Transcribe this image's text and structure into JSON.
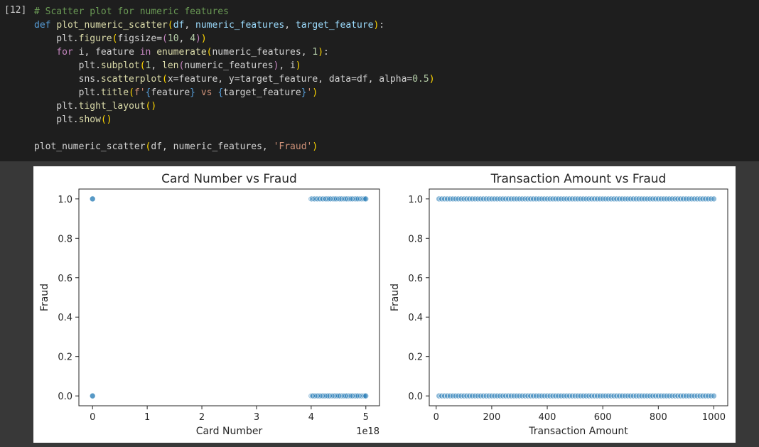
{
  "cell": {
    "execution_count": "[12]",
    "code_lines": [
      [
        {
          "t": "# Scatter plot for numeric features",
          "c": "cm"
        }
      ],
      [
        {
          "t": "def ",
          "c": "kw"
        },
        {
          "t": "plot_numeric_scatter",
          "c": "fn"
        },
        {
          "t": "(",
          "c": "pr"
        },
        {
          "t": "df",
          "c": "vr"
        },
        {
          "t": ", ",
          "c": "pl"
        },
        {
          "t": "numeric_features",
          "c": "vr"
        },
        {
          "t": ", ",
          "c": "pl"
        },
        {
          "t": "target_feature",
          "c": "vr"
        },
        {
          "t": ")",
          "c": "pr"
        },
        {
          "t": ":",
          "c": "pl"
        }
      ],
      [
        {
          "t": "    plt.",
          "c": "pl"
        },
        {
          "t": "figure",
          "c": "fn"
        },
        {
          "t": "(",
          "c": "pr"
        },
        {
          "t": "figsize=",
          "c": "pl"
        },
        {
          "t": "(",
          "c": "ctl"
        },
        {
          "t": "10",
          "c": "nm"
        },
        {
          "t": ", ",
          "c": "pl"
        },
        {
          "t": "4",
          "c": "nm"
        },
        {
          "t": ")",
          "c": "ctl"
        },
        {
          "t": ")",
          "c": "pr"
        }
      ],
      [
        {
          "t": "    ",
          "c": "pl"
        },
        {
          "t": "for ",
          "c": "ctl"
        },
        {
          "t": "i, feature ",
          "c": "pl"
        },
        {
          "t": "in ",
          "c": "ctl"
        },
        {
          "t": "enumerate",
          "c": "fn"
        },
        {
          "t": "(",
          "c": "pr"
        },
        {
          "t": "numeric_features, ",
          "c": "pl"
        },
        {
          "t": "1",
          "c": "nm"
        },
        {
          "t": ")",
          "c": "pr"
        },
        {
          "t": ":",
          "c": "pl"
        }
      ],
      [
        {
          "t": "        plt.",
          "c": "pl"
        },
        {
          "t": "subplot",
          "c": "fn"
        },
        {
          "t": "(",
          "c": "pr"
        },
        {
          "t": "1",
          "c": "nm"
        },
        {
          "t": ", ",
          "c": "pl"
        },
        {
          "t": "len",
          "c": "fn"
        },
        {
          "t": "(",
          "c": "ctl"
        },
        {
          "t": "numeric_features",
          "c": "pl"
        },
        {
          "t": ")",
          "c": "ctl"
        },
        {
          "t": ", i",
          "c": "pl"
        },
        {
          "t": ")",
          "c": "pr"
        }
      ],
      [
        {
          "t": "        sns.",
          "c": "pl"
        },
        {
          "t": "scatterplot",
          "c": "fn"
        },
        {
          "t": "(",
          "c": "pr"
        },
        {
          "t": "x=feature, y=target_feature, data=df, alpha=",
          "c": "pl"
        },
        {
          "t": "0.5",
          "c": "nm"
        },
        {
          "t": ")",
          "c": "pr"
        }
      ],
      [
        {
          "t": "        plt.",
          "c": "pl"
        },
        {
          "t": "title",
          "c": "fn"
        },
        {
          "t": "(",
          "c": "pr"
        },
        {
          "t": "f'",
          "c": "st"
        },
        {
          "t": "{",
          "c": "kw"
        },
        {
          "t": "feature",
          "c": "pl"
        },
        {
          "t": "}",
          "c": "kw"
        },
        {
          "t": " vs ",
          "c": "st"
        },
        {
          "t": "{",
          "c": "kw"
        },
        {
          "t": "target_feature",
          "c": "pl"
        },
        {
          "t": "}",
          "c": "kw"
        },
        {
          "t": "'",
          "c": "st"
        },
        {
          "t": ")",
          "c": "pr"
        }
      ],
      [
        {
          "t": "    plt.",
          "c": "pl"
        },
        {
          "t": "tight_layout",
          "c": "fn"
        },
        {
          "t": "()",
          "c": "pr"
        }
      ],
      [
        {
          "t": "    plt.",
          "c": "pl"
        },
        {
          "t": "show",
          "c": "fn"
        },
        {
          "t": "()",
          "c": "pr"
        }
      ],
      [
        {
          "t": "",
          "c": "pl"
        }
      ],
      [
        {
          "t": "plot_numeric_scatter",
          "c": "pl"
        },
        {
          "t": "(",
          "c": "pr"
        },
        {
          "t": "df, numeric_features, ",
          "c": "pl"
        },
        {
          "t": "'Fraud'",
          "c": "st"
        },
        {
          "t": ")",
          "c": "pr"
        }
      ]
    ]
  },
  "syntax_colors": {
    "comment": "#6a9955",
    "keyword": "#569cd6",
    "control": "#c586c0",
    "function": "#dcdcaa",
    "variable": "#9cdcfe",
    "bracket": "#ffd700",
    "number": "#b5cea8",
    "string": "#ce9178",
    "plain": "#d4d4d4"
  },
  "chart_data": [
    {
      "type": "scatter",
      "title": "Card Number vs Fraud",
      "xlabel": "Card Number",
      "ylabel": "Fraud",
      "x_offset_label": "1e18",
      "xlim": [
        -0.25,
        5.25
      ],
      "ylim": [
        -0.05,
        1.05
      ],
      "x_ticks": [
        0,
        1,
        2,
        3,
        4,
        5
      ],
      "x_tick_labels": [
        "0",
        "1",
        "2",
        "3",
        "4",
        "5"
      ],
      "y_ticks": [
        0.0,
        0.2,
        0.4,
        0.6,
        0.8,
        1.0
      ],
      "y_tick_labels": [
        "0.0",
        "0.2",
        "0.4",
        "0.6",
        "0.8",
        "1.0"
      ],
      "point_color": "#1f77b4",
      "alpha": 0.5,
      "series": [
        {
          "y": 1,
          "x": [
            0,
            0,
            4.0,
            4.02,
            4.05,
            4.07,
            4.1,
            4.12,
            4.15,
            4.17,
            4.2,
            4.22,
            4.25,
            4.27,
            4.3,
            4.33,
            4.36,
            4.4,
            4.43,
            4.46,
            4.5,
            4.53,
            4.56,
            4.6,
            4.63,
            4.66,
            4.7,
            4.73,
            4.76,
            4.8,
            4.83,
            4.86,
            4.9,
            4.93,
            4.96,
            4.98,
            5.0
          ]
        },
        {
          "y": 0,
          "x": [
            0,
            0,
            4.0,
            4.02,
            4.04,
            4.07,
            4.1,
            4.13,
            4.16,
            4.19,
            4.22,
            4.25,
            4.28,
            4.31,
            4.34,
            4.38,
            4.41,
            4.44,
            4.47,
            4.5,
            4.53,
            4.57,
            4.6,
            4.63,
            4.66,
            4.7,
            4.73,
            4.76,
            4.8,
            4.83,
            4.86,
            4.9,
            4.93,
            4.96,
            4.98,
            5.0
          ]
        }
      ]
    },
    {
      "type": "scatter",
      "title": "Transaction Amount vs Fraud",
      "xlabel": "Transaction Amount",
      "ylabel": "Fraud",
      "xlim": [
        -25,
        1050
      ],
      "ylim": [
        -0.05,
        1.05
      ],
      "x_ticks": [
        0,
        200,
        400,
        600,
        800,
        1000
      ],
      "x_tick_labels": [
        "0",
        "200",
        "400",
        "600",
        "800",
        "1000"
      ],
      "y_ticks": [
        0.0,
        0.2,
        0.4,
        0.6,
        0.8,
        1.0
      ],
      "y_tick_labels": [
        "0.0",
        "0.2",
        "0.4",
        "0.6",
        "0.8",
        "1.0"
      ],
      "point_color": "#1f77b4",
      "alpha": 0.5,
      "series": [
        {
          "y": 1,
          "x_range": [
            10,
            1000
          ],
          "x_step": 10
        },
        {
          "y": 0,
          "x_range": [
            10,
            1000
          ],
          "x_step": 10
        }
      ]
    }
  ]
}
